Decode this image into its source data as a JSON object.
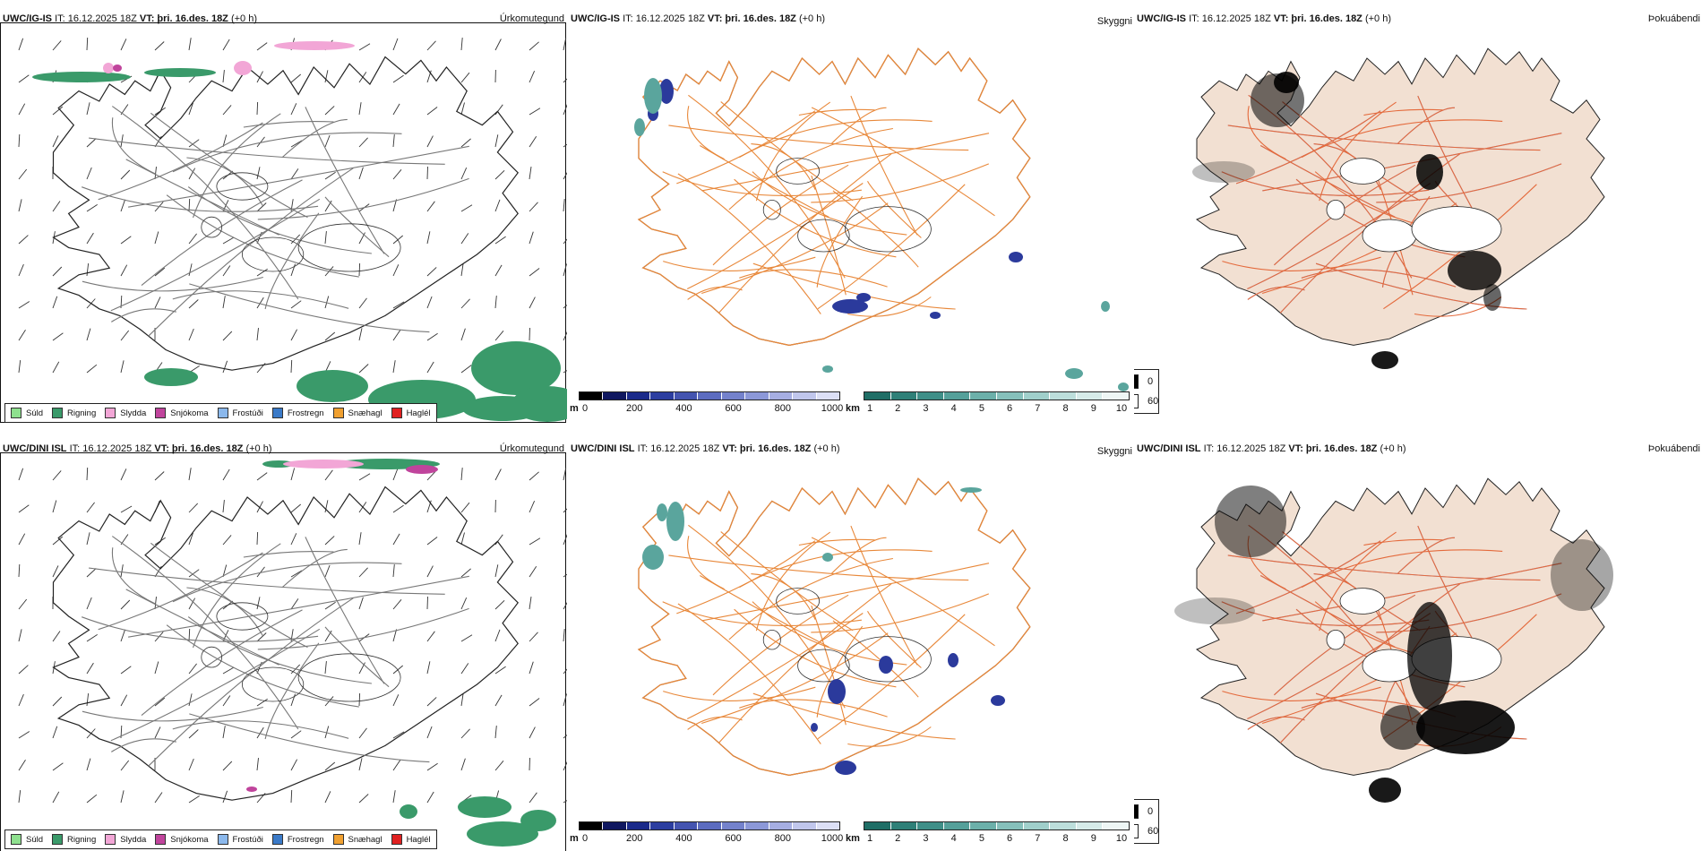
{
  "rows": [
    {
      "model": "UWC/IG-IS",
      "precip_panel": {
        "title_model": "UWC/IG-IS",
        "title_it": "IT: 16.12.2025 18Z",
        "title_vt_label": "VT:",
        "title_vt": "þri. 16.des. 18Z",
        "title_lead": "(+0 h)",
        "label": "Úrkomutegund"
      },
      "visibility_panel": {
        "title_model": "UWC/IG-IS",
        "title_it": "IT: 16.12.2025 18Z",
        "title_vt_label": "VT:",
        "title_vt": "þri. 16.des. 18Z",
        "title_lead": "(+0 h)",
        "label": "Skyggni"
      },
      "fog_panel": {
        "title_model": "UWC/IG-IS",
        "title_it": "IT: 16.12.2025 18Z",
        "title_vt_label": "VT:",
        "title_vt": "þri. 16.des. 18Z",
        "title_lead": "(+0 h)",
        "label": "Þokuábendi"
      }
    },
    {
      "model": "UWC/DINI ISL",
      "precip_panel": {
        "title_model": "UWC/DINI ISL",
        "title_it": "IT: 16.12.2025 18Z",
        "title_vt_label": "VT:",
        "title_vt": "þri. 16.des. 18Z",
        "title_lead": "(+0 h)",
        "label": "Úrkomutegund"
      },
      "visibility_panel": {
        "title_model": "UWC/DINI ISL",
        "title_it": "IT: 16.12.2025 18Z",
        "title_vt_label": "VT:",
        "title_vt": "þri. 16.des. 18Z",
        "title_lead": "(+0 h)",
        "label": "Skyggni"
      },
      "fog_panel": {
        "title_model": "UWC/DINI ISL",
        "title_it": "IT: 16.12.2025 18Z",
        "title_vt_label": "VT:",
        "title_vt": "þri. 16.des. 18Z",
        "title_lead": "(+0 h)",
        "label": "Þokuábendi"
      }
    }
  ],
  "precip_legend": [
    {
      "label": "Súld",
      "color": "#8ee08e"
    },
    {
      "label": "Rigning",
      "color": "#3a9a6a"
    },
    {
      "label": "Slydda",
      "color": "#f2a6d6"
    },
    {
      "label": "Snjókoma",
      "color": "#c0449c"
    },
    {
      "label": "Frostúði",
      "color": "#8bb8ec"
    },
    {
      "label": "Frostregn",
      "color": "#3a7ac8"
    },
    {
      "label": "Snæhagl",
      "color": "#f0a030"
    },
    {
      "label": "Haglél",
      "color": "#e02020"
    }
  ],
  "height_colorbar": {
    "unit": "m",
    "ticks": [
      "0",
      "200",
      "400",
      "600",
      "800",
      "1000"
    ],
    "colors": [
      "#000000",
      "#101860",
      "#1a2a8a",
      "#2c3ea0",
      "#4454b0",
      "#5c6cc0",
      "#7482cc",
      "#8c98d8",
      "#a6aee2",
      "#c0c6ec",
      "#dcdff6"
    ]
  },
  "visibility_colorbar": {
    "unit": "km",
    "ticks": [
      "1",
      "2",
      "3",
      "4",
      "5",
      "6",
      "7",
      "8",
      "9",
      "10"
    ],
    "colors": [
      "#1f6e66",
      "#2f8078",
      "#3f8f88",
      "#55a09a",
      "#6cb0aa",
      "#86c0bb",
      "#a0cfcb",
      "#bcdedb",
      "#d6ebe9",
      "#eef6f5"
    ]
  },
  "fog_legend": {
    "items": [
      {
        "label": "0",
        "color": "#000000"
      },
      {
        "label": "60",
        "color": "#ffffff"
      }
    ]
  }
}
